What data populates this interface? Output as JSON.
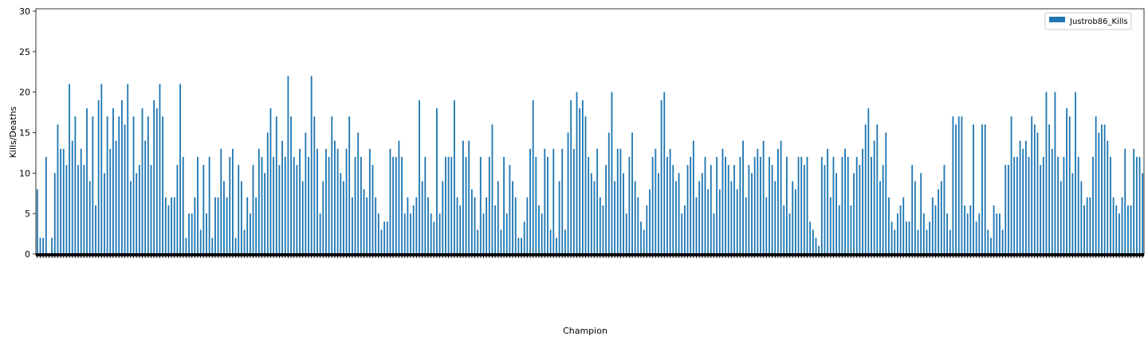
{
  "chart_data": {
    "type": "bar",
    "title": "",
    "xlabel": "Champion",
    "ylabel": "Kills/Deaths",
    "ylim": [
      0,
      30
    ],
    "yticks": [
      0,
      5,
      10,
      15,
      20,
      25,
      30
    ],
    "grid": false,
    "legend_position": "top-right",
    "bar_color": "#1f77b4",
    "series": [
      {
        "name": "Justrob86_Kills",
        "values": [
          8,
          2,
          2,
          12,
          0,
          2,
          10,
          16,
          13,
          13,
          11,
          21,
          14,
          17,
          11,
          13,
          11,
          18,
          9,
          17,
          6,
          19,
          21,
          10,
          17,
          13,
          18,
          14,
          17,
          19,
          16,
          21,
          9,
          17,
          10,
          11,
          18,
          14,
          17,
          11,
          19,
          18,
          21,
          17,
          7,
          6,
          7,
          7,
          11,
          21,
          12,
          2,
          5,
          5,
          7,
          12,
          3,
          11,
          5,
          12,
          2,
          7,
          7,
          13,
          9,
          7,
          12,
          13,
          2,
          11,
          9,
          3,
          7,
          5,
          11,
          7,
          13,
          12,
          10,
          15,
          18,
          12,
          17,
          11,
          14,
          12,
          22,
          17,
          12,
          11,
          13,
          9,
          15,
          12,
          22,
          17,
          13,
          5,
          9,
          13,
          12,
          17,
          14,
          13,
          10,
          9,
          13,
          17,
          7,
          12,
          15,
          12,
          8,
          7,
          13,
          11,
          7,
          5,
          3,
          4,
          4,
          13,
          12,
          12,
          14,
          12,
          5,
          7,
          5,
          6,
          7,
          19,
          9,
          12,
          7,
          5,
          4,
          18,
          5,
          9,
          12,
          12,
          12,
          19,
          7,
          6,
          14,
          12,
          14,
          8,
          7,
          3,
          12,
          5,
          7,
          12,
          16,
          6,
          9,
          3,
          12,
          5,
          11,
          9,
          7,
          2,
          2,
          4,
          7,
          13,
          19,
          12,
          6,
          5,
          13,
          12,
          3,
          13,
          2,
          9,
          13,
          3,
          15,
          19,
          13,
          20,
          18,
          19,
          17,
          12,
          10,
          9,
          13,
          7,
          6,
          11,
          15,
          20,
          9,
          13,
          13,
          10,
          5,
          12,
          15,
          9,
          7,
          4,
          3,
          6,
          8,
          12,
          13,
          10,
          19,
          20,
          12,
          13,
          11,
          9,
          10,
          5,
          6,
          11,
          12,
          14,
          7,
          9,
          10,
          12,
          8,
          11,
          5,
          12,
          8,
          13,
          12,
          11,
          9,
          11,
          8,
          12,
          14,
          7,
          11,
          10,
          12,
          13,
          12,
          14,
          7,
          12,
          11,
          9,
          13,
          14,
          6,
          12,
          5,
          9,
          8,
          12,
          12,
          11,
          12,
          4,
          3,
          2,
          1,
          12,
          11,
          13,
          7,
          12,
          10,
          6,
          12,
          13,
          12,
          6,
          10,
          12,
          11,
          13,
          16,
          18,
          12,
          14,
          16,
          9,
          11,
          15,
          7,
          4,
          3,
          5,
          6,
          7,
          4,
          4,
          11,
          9,
          3,
          10,
          5,
          3,
          4,
          7,
          6,
          8,
          9,
          11,
          5,
          3,
          17,
          16,
          17,
          17,
          6,
          5,
          6,
          16,
          4,
          5,
          16,
          16,
          3,
          2,
          6,
          5,
          5,
          3,
          11,
          11,
          17,
          12,
          12,
          14,
          13,
          14,
          12,
          17,
          16,
          15,
          11,
          12,
          20,
          16,
          13,
          20,
          12,
          9,
          12,
          18,
          17,
          10,
          20,
          12,
          9,
          6,
          7,
          7,
          12,
          17,
          15,
          16,
          16,
          14,
          12,
          7,
          6,
          5,
          7,
          13,
          6,
          6,
          13,
          12,
          12,
          10
        ]
      }
    ]
  }
}
